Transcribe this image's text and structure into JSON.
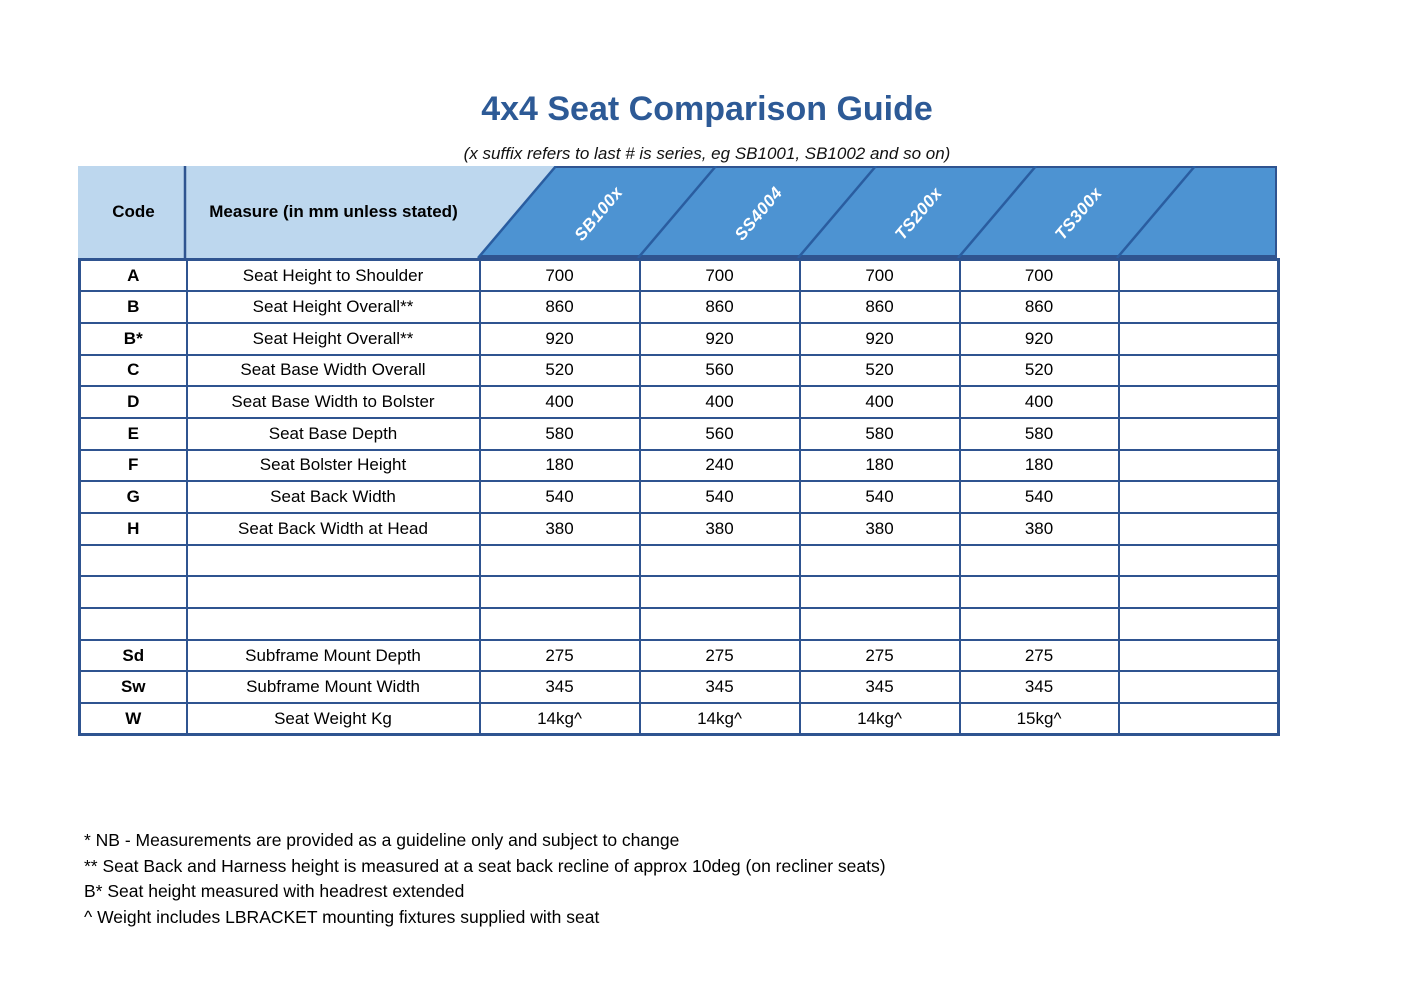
{
  "page": {
    "title": "4x4 Seat Comparison Guide",
    "subtitle": "(x suffix refers to last # is series, eg SB1001, SB1002 and so on)"
  },
  "table": {
    "code_header": "Code",
    "measure_header": "Measure (in mm unless stated)",
    "product_columns": [
      "SB100x",
      "SS4004",
      "TS200x",
      "TS300x",
      ""
    ],
    "rows": [
      {
        "code": "A",
        "measure": "Seat Height to Shoulder",
        "values": [
          "700",
          "700",
          "700",
          "700",
          ""
        ]
      },
      {
        "code": "B",
        "measure": "Seat Height Overall**",
        "values": [
          "860",
          "860",
          "860",
          "860",
          ""
        ]
      },
      {
        "code": "B*",
        "measure": "Seat Height Overall**",
        "values": [
          "920",
          "920",
          "920",
          "920",
          ""
        ]
      },
      {
        "code": "C",
        "measure": "Seat Base Width Overall",
        "values": [
          "520",
          "560",
          "520",
          "520",
          ""
        ]
      },
      {
        "code": "D",
        "measure": "Seat Base Width to Bolster",
        "values": [
          "400",
          "400",
          "400",
          "400",
          ""
        ]
      },
      {
        "code": "E",
        "measure": "Seat Base Depth",
        "values": [
          "580",
          "560",
          "580",
          "580",
          ""
        ]
      },
      {
        "code": "F",
        "measure": "Seat Bolster Height",
        "values": [
          "180",
          "240",
          "180",
          "180",
          ""
        ]
      },
      {
        "code": "G",
        "measure": "Seat Back Width",
        "values": [
          "540",
          "540",
          "540",
          "540",
          ""
        ]
      },
      {
        "code": "H",
        "measure": "Seat Back Width at Head",
        "values": [
          "380",
          "380",
          "380",
          "380",
          ""
        ]
      },
      {
        "code": "",
        "measure": "",
        "values": [
          "",
          "",
          "",
          "",
          ""
        ]
      },
      {
        "code": "",
        "measure": "",
        "values": [
          "",
          "",
          "",
          "",
          ""
        ]
      },
      {
        "code": "",
        "measure": "",
        "values": [
          "",
          "",
          "",
          "",
          ""
        ]
      },
      {
        "code": "Sd",
        "measure": "Subframe Mount Depth",
        "values": [
          "275",
          "275",
          "275",
          "275",
          ""
        ]
      },
      {
        "code": "Sw",
        "measure": "Subframe Mount Width",
        "values": [
          "345",
          "345",
          "345",
          "345",
          ""
        ]
      },
      {
        "code": "W",
        "measure": "Seat Weight Kg",
        "values": [
          "14kg^",
          "14kg^",
          "14kg^",
          "15kg^",
          ""
        ]
      }
    ]
  },
  "footnotes": [
    "* NB - Measurements are provided as a guideline only and subject to change",
    "** Seat Back and Harness height is measured at a seat back recline of approx 10deg (on recliner seats)",
    "B* Seat height measured with headrest extended",
    "^ Weight includes LBRACKET mounting fixtures supplied with seat"
  ],
  "colors": {
    "title_blue": "#2d5a96",
    "header_dark_blue": "#4d93d2",
    "header_light_blue": "#bdd7ee",
    "grid_border": "#2f5490",
    "diagonal_line": "#2a5da0",
    "header_label_text": "#ffffff"
  }
}
